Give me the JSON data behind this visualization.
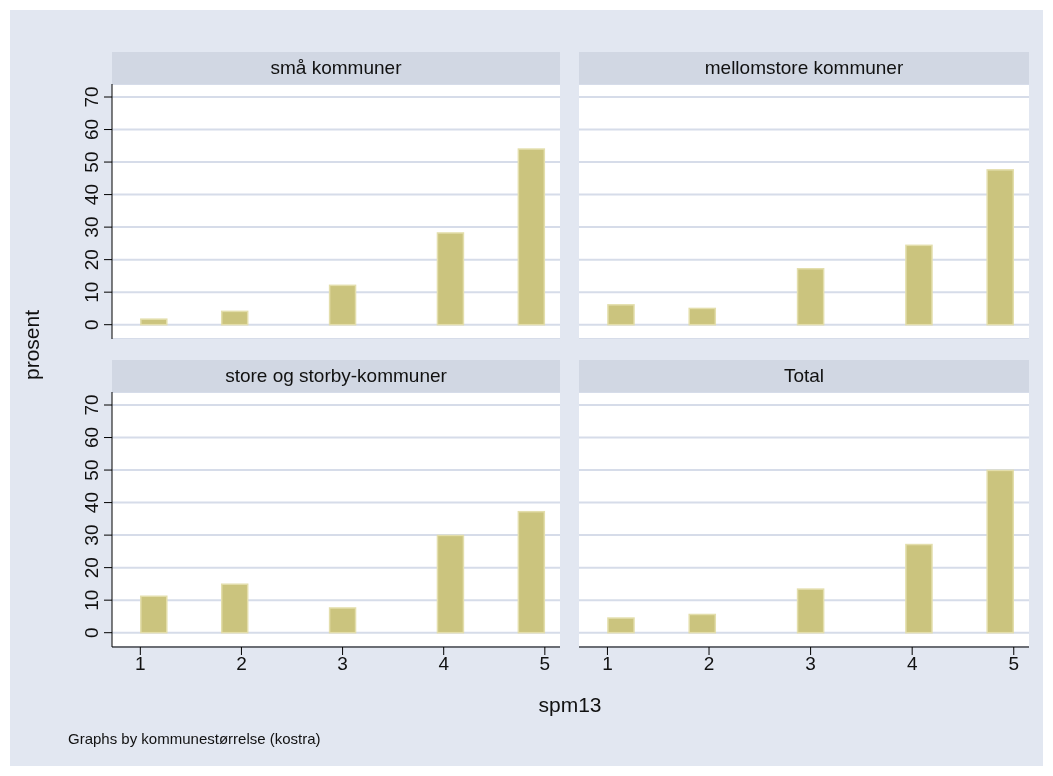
{
  "chart_data": [
    {
      "type": "histogram",
      "title": "små kommuner",
      "ylabel": "prosent",
      "bins": [
        1,
        1.2667,
        1.5333,
        1.8,
        2.0667,
        2.3333,
        2.6,
        2.8667,
        3.1333,
        3.4,
        3.6667,
        3.9333,
        4.2,
        4.4667,
        4.7333,
        5
      ],
      "values": [
        1.7,
        0,
        0,
        4.1,
        0,
        0,
        0,
        12.1,
        0,
        0,
        0,
        28.2,
        0,
        0,
        54.0
      ],
      "color": "#cbc47e",
      "xlim": [
        0.72,
        5.15
      ],
      "xticks": [
        1,
        2,
        3,
        4,
        5
      ],
      "ylim": [
        -4.4,
        74
      ],
      "yticks": [
        0,
        10,
        20,
        30,
        40,
        50,
        60,
        70
      ],
      "grid": "y",
      "tick_labels": "y"
    },
    {
      "type": "histogram",
      "title": "mellomstore kommuner",
      "bins": [
        1,
        1.2667,
        1.5333,
        1.8,
        2.0667,
        2.3333,
        2.6,
        2.8667,
        3.1333,
        3.4,
        3.6667,
        3.9333,
        4.2,
        4.4667,
        4.7333,
        5
      ],
      "values": [
        6.1,
        0,
        0,
        5.0,
        0,
        0,
        0,
        17.2,
        0,
        0,
        0,
        24.4,
        0,
        0,
        47.6
      ],
      "color": "#cbc47e",
      "xlim": [
        0.72,
        5.15
      ],
      "xticks": [
        1,
        2,
        3,
        4,
        5
      ],
      "ylim": [
        -4.4,
        74
      ],
      "yticks": [
        0,
        10,
        20,
        30,
        40,
        50,
        60,
        70
      ],
      "grid": "y",
      "tick_labels": false
    },
    {
      "type": "histogram",
      "title": "store og storby-kommuner",
      "xlabel": "spm13",
      "annotations": [
        "Graphs by kommunestørrelse (kostra)"
      ],
      "bins": [
        1,
        1.2667,
        1.5333,
        1.8,
        2.0667,
        2.3333,
        2.6,
        2.8667,
        3.1333,
        3.4,
        3.6667,
        3.9333,
        4.2,
        4.4667,
        4.7333,
        5
      ],
      "values": [
        11.2,
        0,
        0,
        14.9,
        0,
        0,
        0,
        7.6,
        0,
        0,
        0,
        29.9,
        0,
        0,
        37.2
      ],
      "color": "#cbc47e",
      "xlim": [
        0.72,
        5.15
      ],
      "xticks": [
        1,
        2,
        3,
        4,
        5
      ],
      "ylim": [
        -4.4,
        74
      ],
      "yticks": [
        0,
        10,
        20,
        30,
        40,
        50,
        60,
        70
      ],
      "grid": "y"
    },
    {
      "type": "histogram",
      "title": "Total",
      "bins": [
        1,
        1.2667,
        1.5333,
        1.8,
        2.0667,
        2.3333,
        2.6,
        2.8667,
        3.1333,
        3.4,
        3.6667,
        3.9333,
        4.2,
        4.4667,
        4.7333,
        5
      ],
      "values": [
        4.5,
        0,
        0,
        5.6,
        0,
        0,
        0,
        13.4,
        0,
        0,
        0,
        27.1,
        0,
        0,
        49.9
      ],
      "color": "#cbc47e",
      "xlim": [
        0.72,
        5.15
      ],
      "xticks": [
        1,
        2,
        3,
        4,
        5
      ],
      "ylim": [
        -4.4,
        74
      ],
      "yticks": [
        0,
        10,
        20,
        30,
        40,
        50,
        60,
        70
      ],
      "grid": "y",
      "tick_labels": "x"
    }
  ]
}
